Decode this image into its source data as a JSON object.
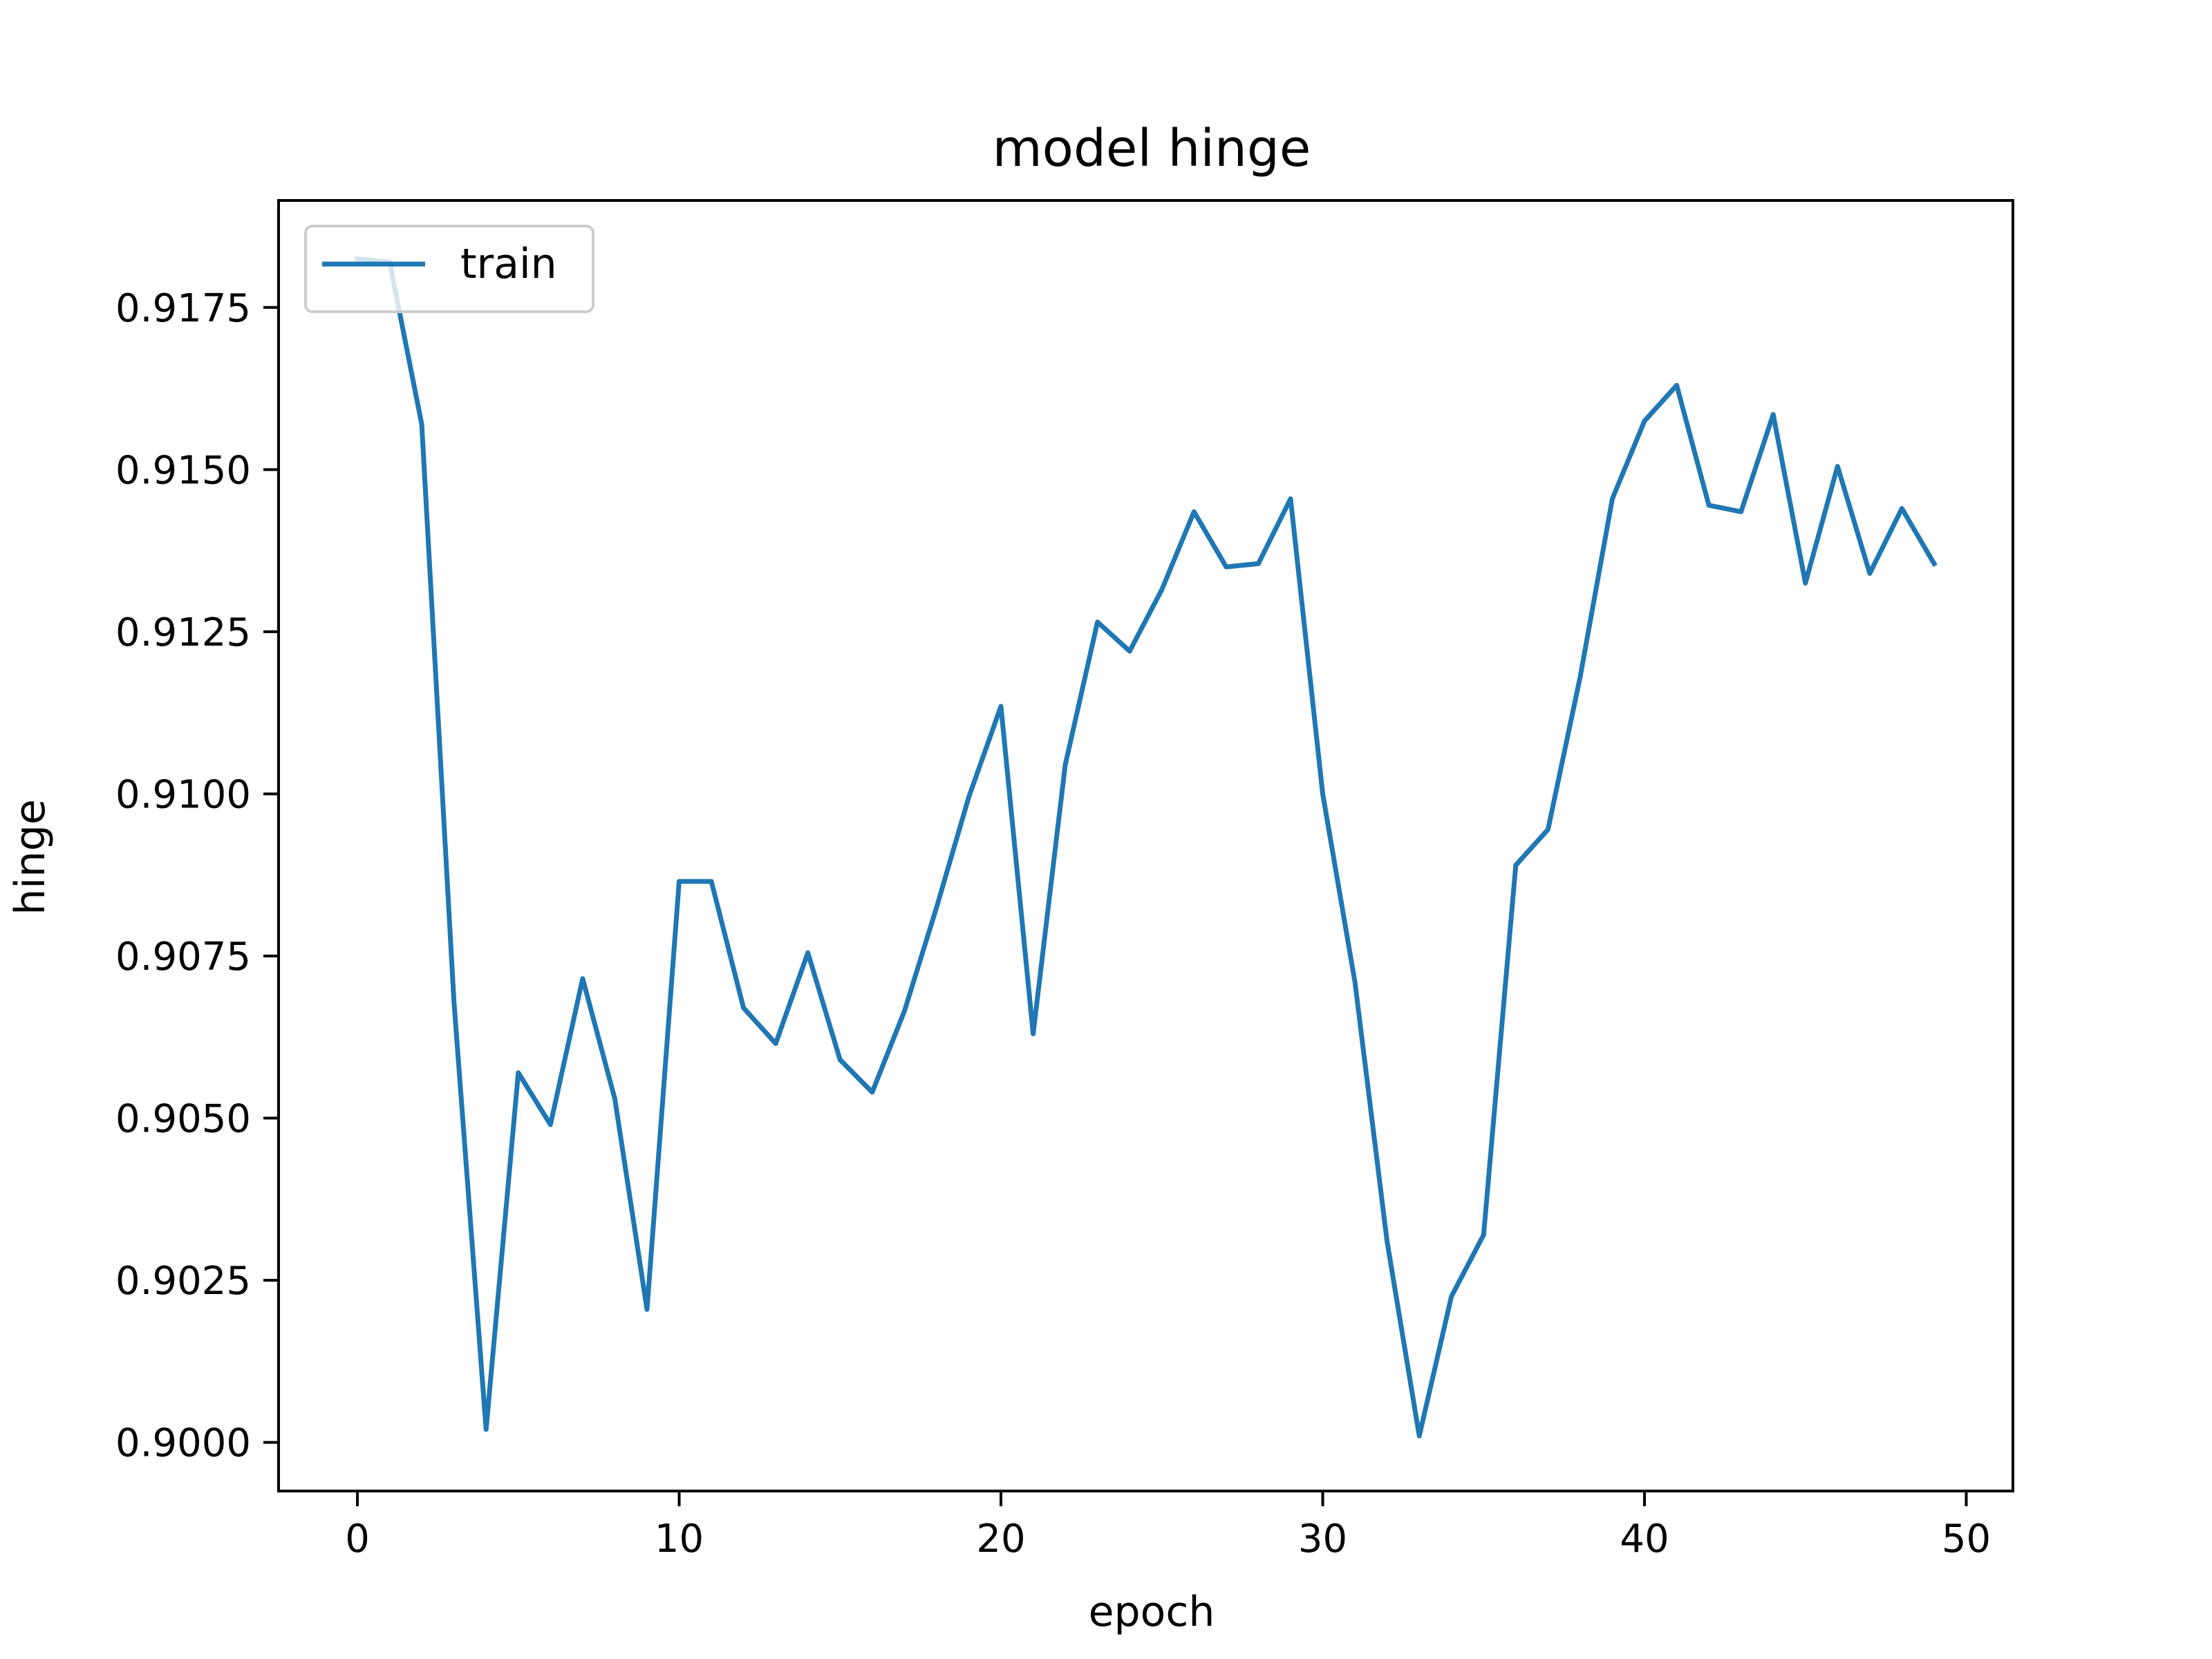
{
  "chart_data": {
    "type": "line",
    "title": "model hinge",
    "xlabel": "epoch",
    "ylabel": "hinge",
    "xlim": [
      -2.45,
      51.45
    ],
    "ylim": [
      0.89925,
      0.91915
    ],
    "x_ticks": [
      0,
      10,
      20,
      30,
      40,
      50
    ],
    "x_tick_labels": [
      "0",
      "10",
      "20",
      "30",
      "40",
      "50"
    ],
    "y_ticks": [
      0.9,
      0.9025,
      0.905,
      0.9075,
      0.91,
      0.9125,
      0.915,
      0.9175
    ],
    "y_tick_labels": [
      "0.9000",
      "0.9025",
      "0.9050",
      "0.9075",
      "0.9100",
      "0.9125",
      "0.9150",
      "0.9175"
    ],
    "grid": false,
    "legend": {
      "position": "upper left",
      "entries": [
        "train"
      ]
    },
    "colors": {
      "train": "#1f77b4"
    },
    "series": [
      {
        "name": "train",
        "x": [
          0,
          1,
          2,
          3,
          4,
          5,
          6,
          7,
          8,
          9,
          10,
          11,
          12,
          13,
          14,
          15,
          16,
          17,
          18,
          19,
          20,
          21,
          22,
          23,
          24,
          25,
          26,
          27,
          28,
          29,
          30,
          31,
          32,
          33,
          34,
          35,
          36,
          37,
          38,
          39,
          40,
          41,
          42,
          43,
          44,
          45,
          46,
          47,
          48,
          49
        ],
        "values": [
          0.91825,
          0.9182,
          0.9157,
          0.9068,
          0.9002,
          0.9057,
          0.9049,
          0.90715,
          0.9053,
          0.90205,
          0.90865,
          0.90865,
          0.9067,
          0.90615,
          0.90755,
          0.9059,
          0.9054,
          0.90665,
          0.90825,
          0.90995,
          0.91135,
          0.9063,
          0.91045,
          0.91265,
          0.9122,
          0.91315,
          0.91435,
          0.9135,
          0.91355,
          0.91455,
          0.91,
          0.9071,
          0.9031,
          0.9001,
          0.90225,
          0.9032,
          0.9089,
          0.90945,
          0.9118,
          0.91455,
          0.91575,
          0.9163,
          0.91445,
          0.91435,
          0.91585,
          0.91325,
          0.91505,
          0.9134,
          0.9144,
          0.91355
        ]
      }
    ]
  }
}
